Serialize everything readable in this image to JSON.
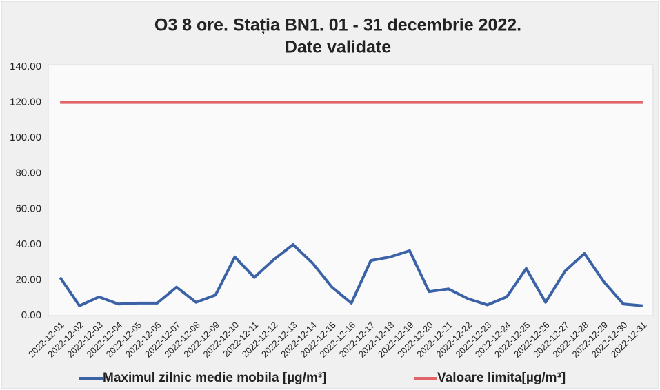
{
  "chart_data": {
    "type": "line",
    "title": [
      "O3 8 ore. Stația BN1. 01 - 31 decembrie 2022.",
      "Date validate"
    ],
    "categories": [
      "2022-12-01",
      "2022-12-02",
      "2022-12-03",
      "2022-12-04",
      "2022-12-05",
      "2022-12-06",
      "2022-12-07",
      "2022-12-08",
      "2022-12-09",
      "2022-12-10",
      "2022-12-11",
      "2022-12-12",
      "2022-12-13",
      "2022-12-14",
      "2022-12-15",
      "2022-12-16",
      "2022-12-17",
      "2022-12-18",
      "2022-12-19",
      "2022-12-20",
      "2022-12-21",
      "2022-12-22",
      "2022-12-23",
      "2022-12-24",
      "2022-12-25",
      "2022-12-26",
      "2022-12-27",
      "2022-12-28",
      "2022-12-29",
      "2022-12-30",
      "2022-12-31"
    ],
    "series": [
      {
        "name": "Maximul zilnic medie mobila [µg/m³]",
        "color": "#3b62a6",
        "values": [
          21.5,
          5.5,
          10.5,
          6.5,
          7,
          7,
          16,
          7.5,
          11.5,
          33,
          21.5,
          31.5,
          40,
          29.5,
          16,
          7,
          31,
          33,
          36.5,
          13.5,
          15,
          9.5,
          6,
          10.5,
          26.5,
          7.5,
          25,
          35,
          19,
          6.5,
          5.5
        ]
      },
      {
        "name": "Valoare limita[µg/m³]",
        "color": "#e0646a",
        "values": [
          120,
          120,
          120,
          120,
          120,
          120,
          120,
          120,
          120,
          120,
          120,
          120,
          120,
          120,
          120,
          120,
          120,
          120,
          120,
          120,
          120,
          120,
          120,
          120,
          120,
          120,
          120,
          120,
          120,
          120,
          120
        ]
      }
    ],
    "ylim": [
      0,
      140
    ],
    "yticks": [
      {
        "value": 0,
        "label": "0.00"
      },
      {
        "value": 20,
        "label": "20.00"
      },
      {
        "value": 40,
        "label": "40.00"
      },
      {
        "value": 60,
        "label": "60.00"
      },
      {
        "value": 80,
        "label": "80.00"
      },
      {
        "value": 100,
        "label": "100.00"
      },
      {
        "value": 120,
        "label": "120.00"
      },
      {
        "value": 140,
        "label": "140.00"
      }
    ],
    "grid": false,
    "legend": "bottom"
  }
}
